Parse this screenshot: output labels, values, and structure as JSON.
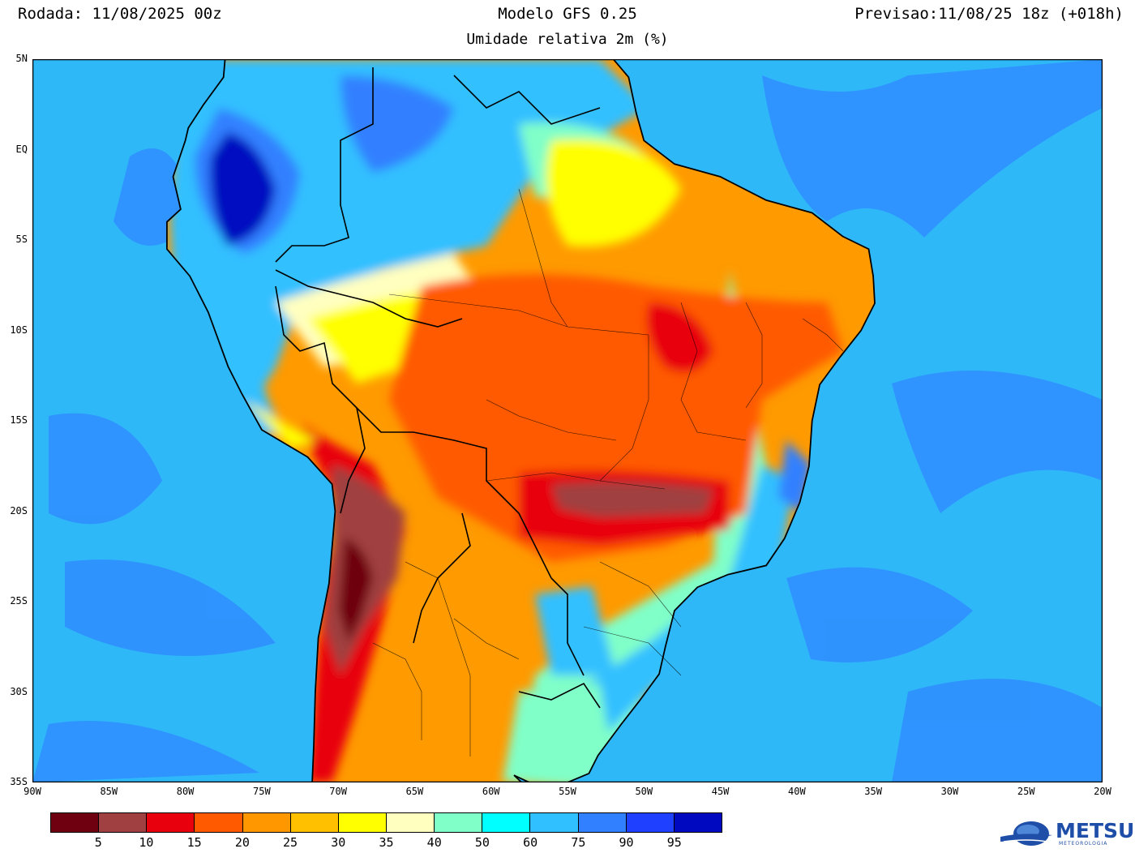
{
  "header": {
    "left": "Rodada: 11/08/2025 00z",
    "center": "Modelo GFS 0.25",
    "right": "Previsao:11/08/25 18z (+018h)",
    "subtitle": "Umidade relativa 2m (%)"
  },
  "map": {
    "lon_range": [
      -90,
      -20
    ],
    "lat_range": [
      -35,
      5
    ],
    "lat_labels": [
      "5N",
      "EQ",
      "5S",
      "10S",
      "15S",
      "20S",
      "25S",
      "30S",
      "35S"
    ],
    "lon_labels": [
      "90W",
      "85W",
      "80W",
      "75W",
      "70W",
      "65W",
      "60W",
      "55W",
      "50W",
      "45W",
      "40W",
      "35W",
      "30W",
      "25W",
      "20W"
    ],
    "ocean_color": "#2fb8f8"
  },
  "colorbar": {
    "colors": [
      "#6e0010",
      "#a04040",
      "#e8000c",
      "#ff5a00",
      "#ff9800",
      "#ffc000",
      "#ffff00",
      "#ffffc0",
      "#80ffc8",
      "#00ffff",
      "#30c0ff",
      "#3080ff",
      "#2040ff",
      "#0008c0"
    ],
    "labels": [
      "5",
      "10",
      "15",
      "20",
      "25",
      "30",
      "35",
      "40",
      "50",
      "60",
      "75",
      "90",
      "95"
    ]
  },
  "logo": {
    "name": "METSUL",
    "tagline": "METEOROLOGIA"
  }
}
